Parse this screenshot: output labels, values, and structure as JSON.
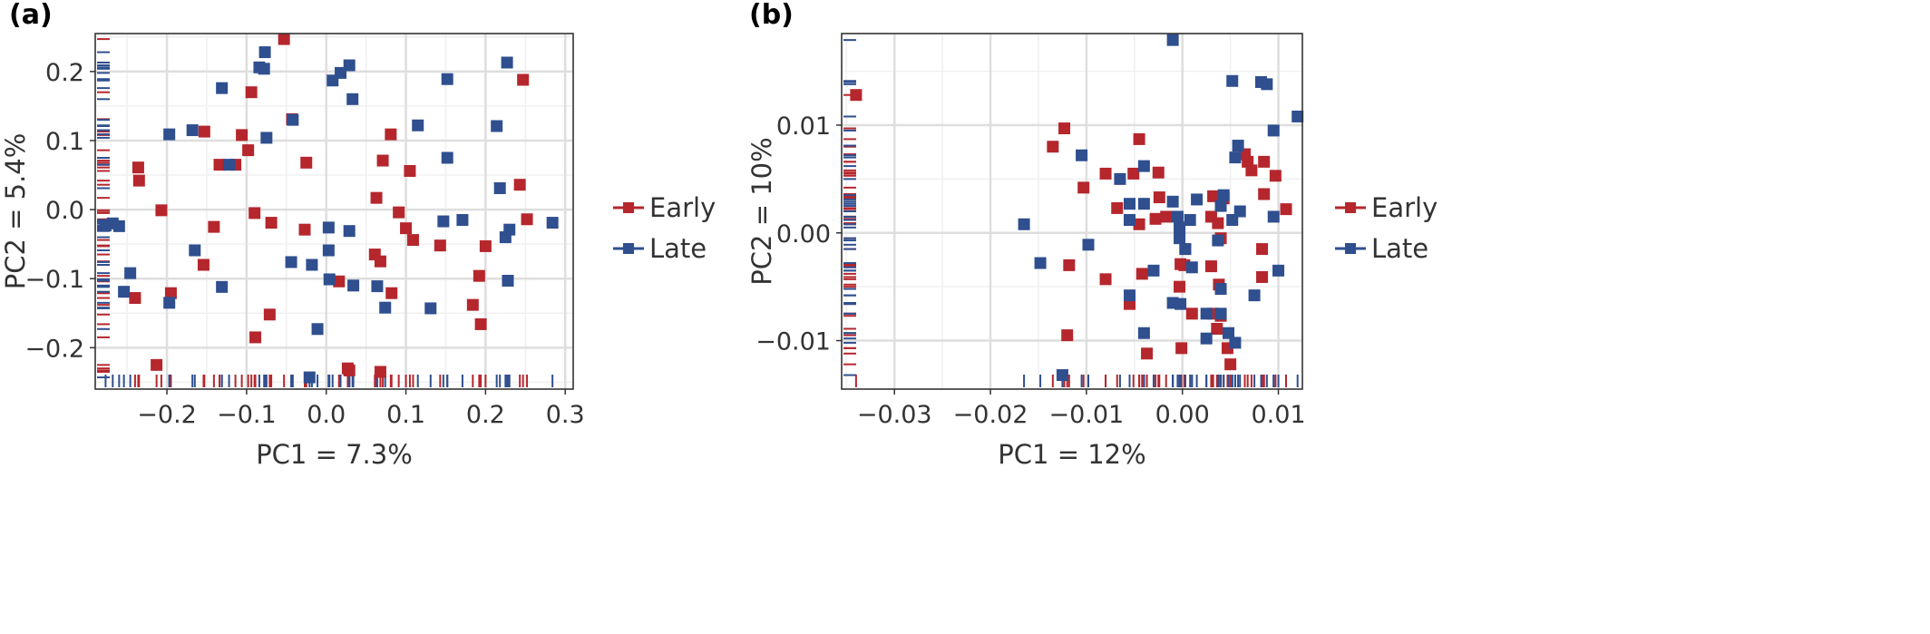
{
  "chart_data": [
    {
      "panel": "(a)",
      "type": "scatter",
      "xlabel": "PC1 = 7.3%",
      "ylabel": "PC2 = 5.4%",
      "xlim": [
        -0.29,
        0.31
      ],
      "ylim": [
        -0.26,
        0.255
      ],
      "xticks": [
        -0.2,
        -0.1,
        0.0,
        0.1,
        0.2,
        0.3
      ],
      "xtick_labels": [
        "−0.2",
        "−0.1",
        "0.0",
        "0.1",
        "0.2",
        "0.3"
      ],
      "yticks": [
        -0.2,
        -0.1,
        0.0,
        0.1,
        0.2
      ],
      "ytick_labels": [
        "−0.2",
        "−0.1",
        "0.0",
        "0.1",
        "0.2"
      ],
      "grid": true,
      "legend": "right",
      "rug": true,
      "series": [
        {
          "name": "Early",
          "color": "#b5272d",
          "points": [
            [
              -0.053,
              0.247
            ],
            [
              0.247,
              0.188
            ],
            [
              -0.094,
              0.17
            ],
            [
              -0.043,
              0.131
            ],
            [
              -0.153,
              0.113
            ],
            [
              -0.106,
              0.108
            ],
            [
              0.081,
              0.109
            ],
            [
              -0.098,
              0.086
            ],
            [
              -0.134,
              0.065
            ],
            [
              -0.114,
              0.065
            ],
            [
              -0.025,
              0.068
            ],
            [
              0.071,
              0.071
            ],
            [
              0.105,
              0.056
            ],
            [
              -0.236,
              0.061
            ],
            [
              -0.235,
              0.042
            ],
            [
              0.243,
              0.036
            ],
            [
              0.063,
              0.017
            ],
            [
              -0.207,
              -0.001
            ],
            [
              -0.09,
              -0.005
            ],
            [
              0.091,
              -0.004
            ],
            [
              0.252,
              -0.014
            ],
            [
              -0.069,
              -0.019
            ],
            [
              -0.141,
              -0.025
            ],
            [
              0.1,
              -0.027
            ],
            [
              0.109,
              -0.044
            ],
            [
              -0.027,
              -0.029
            ],
            [
              0.143,
              -0.052
            ],
            [
              0.2,
              -0.053
            ],
            [
              0.061,
              -0.065
            ],
            [
              0.068,
              -0.075
            ],
            [
              -0.154,
              -0.08
            ],
            [
              0.192,
              -0.096
            ],
            [
              0.016,
              -0.104
            ],
            [
              -0.24,
              -0.128
            ],
            [
              -0.195,
              -0.121
            ],
            [
              0.082,
              -0.121
            ],
            [
              0.184,
              -0.138
            ],
            [
              -0.071,
              -0.152
            ],
            [
              0.194,
              -0.166
            ],
            [
              -0.089,
              -0.185
            ],
            [
              -0.213,
              -0.225
            ],
            [
              0.027,
              -0.23
            ],
            [
              0.029,
              -0.233
            ],
            [
              0.068,
              -0.235
            ]
          ]
        },
        {
          "name": "Late",
          "color": "#2f4f8f",
          "points": [
            [
              -0.077,
              0.228
            ],
            [
              -0.084,
              0.206
            ],
            [
              -0.078,
              0.204
            ],
            [
              0.029,
              0.209
            ],
            [
              0.018,
              0.198
            ],
            [
              0.008,
              0.187
            ],
            [
              0.227,
              0.213
            ],
            [
              0.152,
              0.189
            ],
            [
              -0.131,
              0.176
            ],
            [
              0.033,
              0.16
            ],
            [
              -0.042,
              0.13
            ],
            [
              0.115,
              0.122
            ],
            [
              0.214,
              0.121
            ],
            [
              -0.197,
              0.109
            ],
            [
              -0.168,
              0.115
            ],
            [
              -0.075,
              0.104
            ],
            [
              -0.122,
              0.065
            ],
            [
              0.152,
              0.075
            ],
            [
              0.218,
              0.031
            ],
            [
              -0.277,
              -0.023
            ],
            [
              -0.268,
              -0.02
            ],
            [
              -0.26,
              -0.024
            ],
            [
              0.147,
              -0.017
            ],
            [
              0.171,
              -0.015
            ],
            [
              0.284,
              -0.019
            ],
            [
              0.003,
              -0.026
            ],
            [
              0.029,
              -0.031
            ],
            [
              0.23,
              -0.029
            ],
            [
              0.225,
              -0.04
            ],
            [
              -0.165,
              -0.059
            ],
            [
              0.003,
              -0.059
            ],
            [
              -0.044,
              -0.076
            ],
            [
              -0.018,
              -0.08
            ],
            [
              -0.246,
              -0.092
            ],
            [
              0.004,
              -0.101
            ],
            [
              0.034,
              -0.11
            ],
            [
              0.064,
              -0.111
            ],
            [
              -0.131,
              -0.112
            ],
            [
              -0.254,
              -0.119
            ],
            [
              0.228,
              -0.103
            ],
            [
              0.074,
              -0.142
            ],
            [
              0.131,
              -0.143
            ],
            [
              -0.197,
              -0.135
            ],
            [
              -0.011,
              -0.173
            ],
            [
              -0.021,
              -0.243
            ]
          ]
        }
      ]
    },
    {
      "panel": "(b)",
      "type": "scatter",
      "xlabel": "PC1 = 12%",
      "ylabel": "PC2 = 10%",
      "xlim": [
        -0.0355,
        0.0125
      ],
      "ylim": [
        -0.0145,
        0.0185
      ],
      "xticks": [
        -0.03,
        -0.02,
        -0.01,
        0.0,
        0.01
      ],
      "xtick_labels": [
        "−0.03",
        "−0.02",
        "−0.01",
        "0.00",
        "0.01"
      ],
      "yticks": [
        -0.01,
        0.0,
        0.01
      ],
      "ytick_labels": [
        "−0.01",
        "0.00",
        "0.01"
      ],
      "grid": true,
      "legend": "right",
      "rug": true,
      "series": [
        {
          "name": "Early",
          "color": "#b5272d",
          "points": [
            [
              -0.034,
              0.0128
            ],
            [
              -0.0123,
              0.0097
            ],
            [
              -0.0135,
              0.008
            ],
            [
              -0.0045,
              0.0087
            ],
            [
              -0.0051,
              0.0055
            ],
            [
              -0.008,
              0.0055
            ],
            [
              -0.0103,
              0.0042
            ],
            [
              -0.0025,
              0.0056
            ],
            [
              0.0065,
              0.0073
            ],
            [
              0.0068,
              0.0066
            ],
            [
              0.0085,
              0.0066
            ],
            [
              0.0097,
              0.0053
            ],
            [
              0.0072,
              0.0058
            ],
            [
              0.0085,
              0.0036
            ],
            [
              0.0108,
              0.0022
            ],
            [
              0.0032,
              0.0034
            ],
            [
              0.0043,
              0.0032
            ],
            [
              -0.0024,
              0.0033
            ],
            [
              -0.0028,
              0.0013
            ],
            [
              -0.0045,
              0.0008
            ],
            [
              -0.0068,
              0.0023
            ],
            [
              -0.0017,
              0.0015
            ],
            [
              0.003,
              0.0015
            ],
            [
              0.0037,
              0.0009
            ],
            [
              0.004,
              -0.0005
            ],
            [
              0.0003,
              -0.0015
            ],
            [
              -0.0002,
              -0.0029
            ],
            [
              0.0002,
              -0.003
            ],
            [
              0.003,
              -0.0031
            ],
            [
              -0.0118,
              -0.003
            ],
            [
              -0.0042,
              -0.0038
            ],
            [
              -0.008,
              -0.0043
            ],
            [
              0.0083,
              -0.0041
            ],
            [
              0.0083,
              -0.0015
            ],
            [
              0.0038,
              -0.0048
            ],
            [
              -0.0003,
              -0.005
            ],
            [
              0.001,
              -0.0075
            ],
            [
              0.0032,
              -0.0075
            ],
            [
              0.004,
              -0.0077
            ],
            [
              0.0036,
              -0.0089
            ],
            [
              -0.0001,
              -0.0107
            ],
            [
              0.0047,
              -0.0107
            ],
            [
              0.005,
              -0.0122
            ],
            [
              -0.0037,
              -0.0112
            ],
            [
              -0.012,
              -0.0095
            ],
            [
              -0.0055,
              -0.0066
            ]
          ]
        },
        {
          "name": "Late",
          "color": "#2f4f8f",
          "points": [
            [
              -0.001,
              0.0179
            ],
            [
              0.0052,
              0.0141
            ],
            [
              0.0082,
              0.014
            ],
            [
              0.0088,
              0.0138
            ],
            [
              0.012,
              0.0108
            ],
            [
              0.0095,
              0.0095
            ],
            [
              0.0058,
              0.0081
            ],
            [
              0.0055,
              0.007
            ],
            [
              -0.0105,
              0.0072
            ],
            [
              -0.004,
              0.0062
            ],
            [
              -0.0065,
              0.005
            ],
            [
              -0.001,
              0.0029
            ],
            [
              -0.004,
              0.0027
            ],
            [
              0.0015,
              0.0031
            ],
            [
              0.0043,
              0.0035
            ],
            [
              0.004,
              0.0025
            ],
            [
              -0.0055,
              0.0027
            ],
            [
              -0.0055,
              0.0012
            ],
            [
              0.0008,
              0.0012
            ],
            [
              0.006,
              0.002
            ],
            [
              0.0095,
              0.0015
            ],
            [
              0.0052,
              0.0012
            ],
            [
              -0.0005,
              0.0015
            ],
            [
              -0.0003,
              0.0005
            ],
            [
              -0.0003,
              -0.0005
            ],
            [
              0.0003,
              -0.0015
            ],
            [
              0.0037,
              -0.0007
            ],
            [
              -0.0165,
              0.0008
            ],
            [
              -0.0098,
              -0.0011
            ],
            [
              -0.0148,
              -0.0028
            ],
            [
              -0.003,
              -0.0035
            ],
            [
              0.001,
              -0.0032
            ],
            [
              0.01,
              -0.0035
            ],
            [
              0.004,
              -0.0052
            ],
            [
              0.0075,
              -0.0058
            ],
            [
              -0.0055,
              -0.0058
            ],
            [
              -0.001,
              -0.0065
            ],
            [
              -0.0002,
              -0.0066
            ],
            [
              0.0025,
              -0.0075
            ],
            [
              0.004,
              -0.0075
            ],
            [
              -0.004,
              -0.0093
            ],
            [
              0.0025,
              -0.0098
            ],
            [
              0.0048,
              -0.0093
            ],
            [
              0.0055,
              -0.0102
            ],
            [
              -0.0125,
              -0.0132
            ]
          ]
        }
      ]
    }
  ]
}
